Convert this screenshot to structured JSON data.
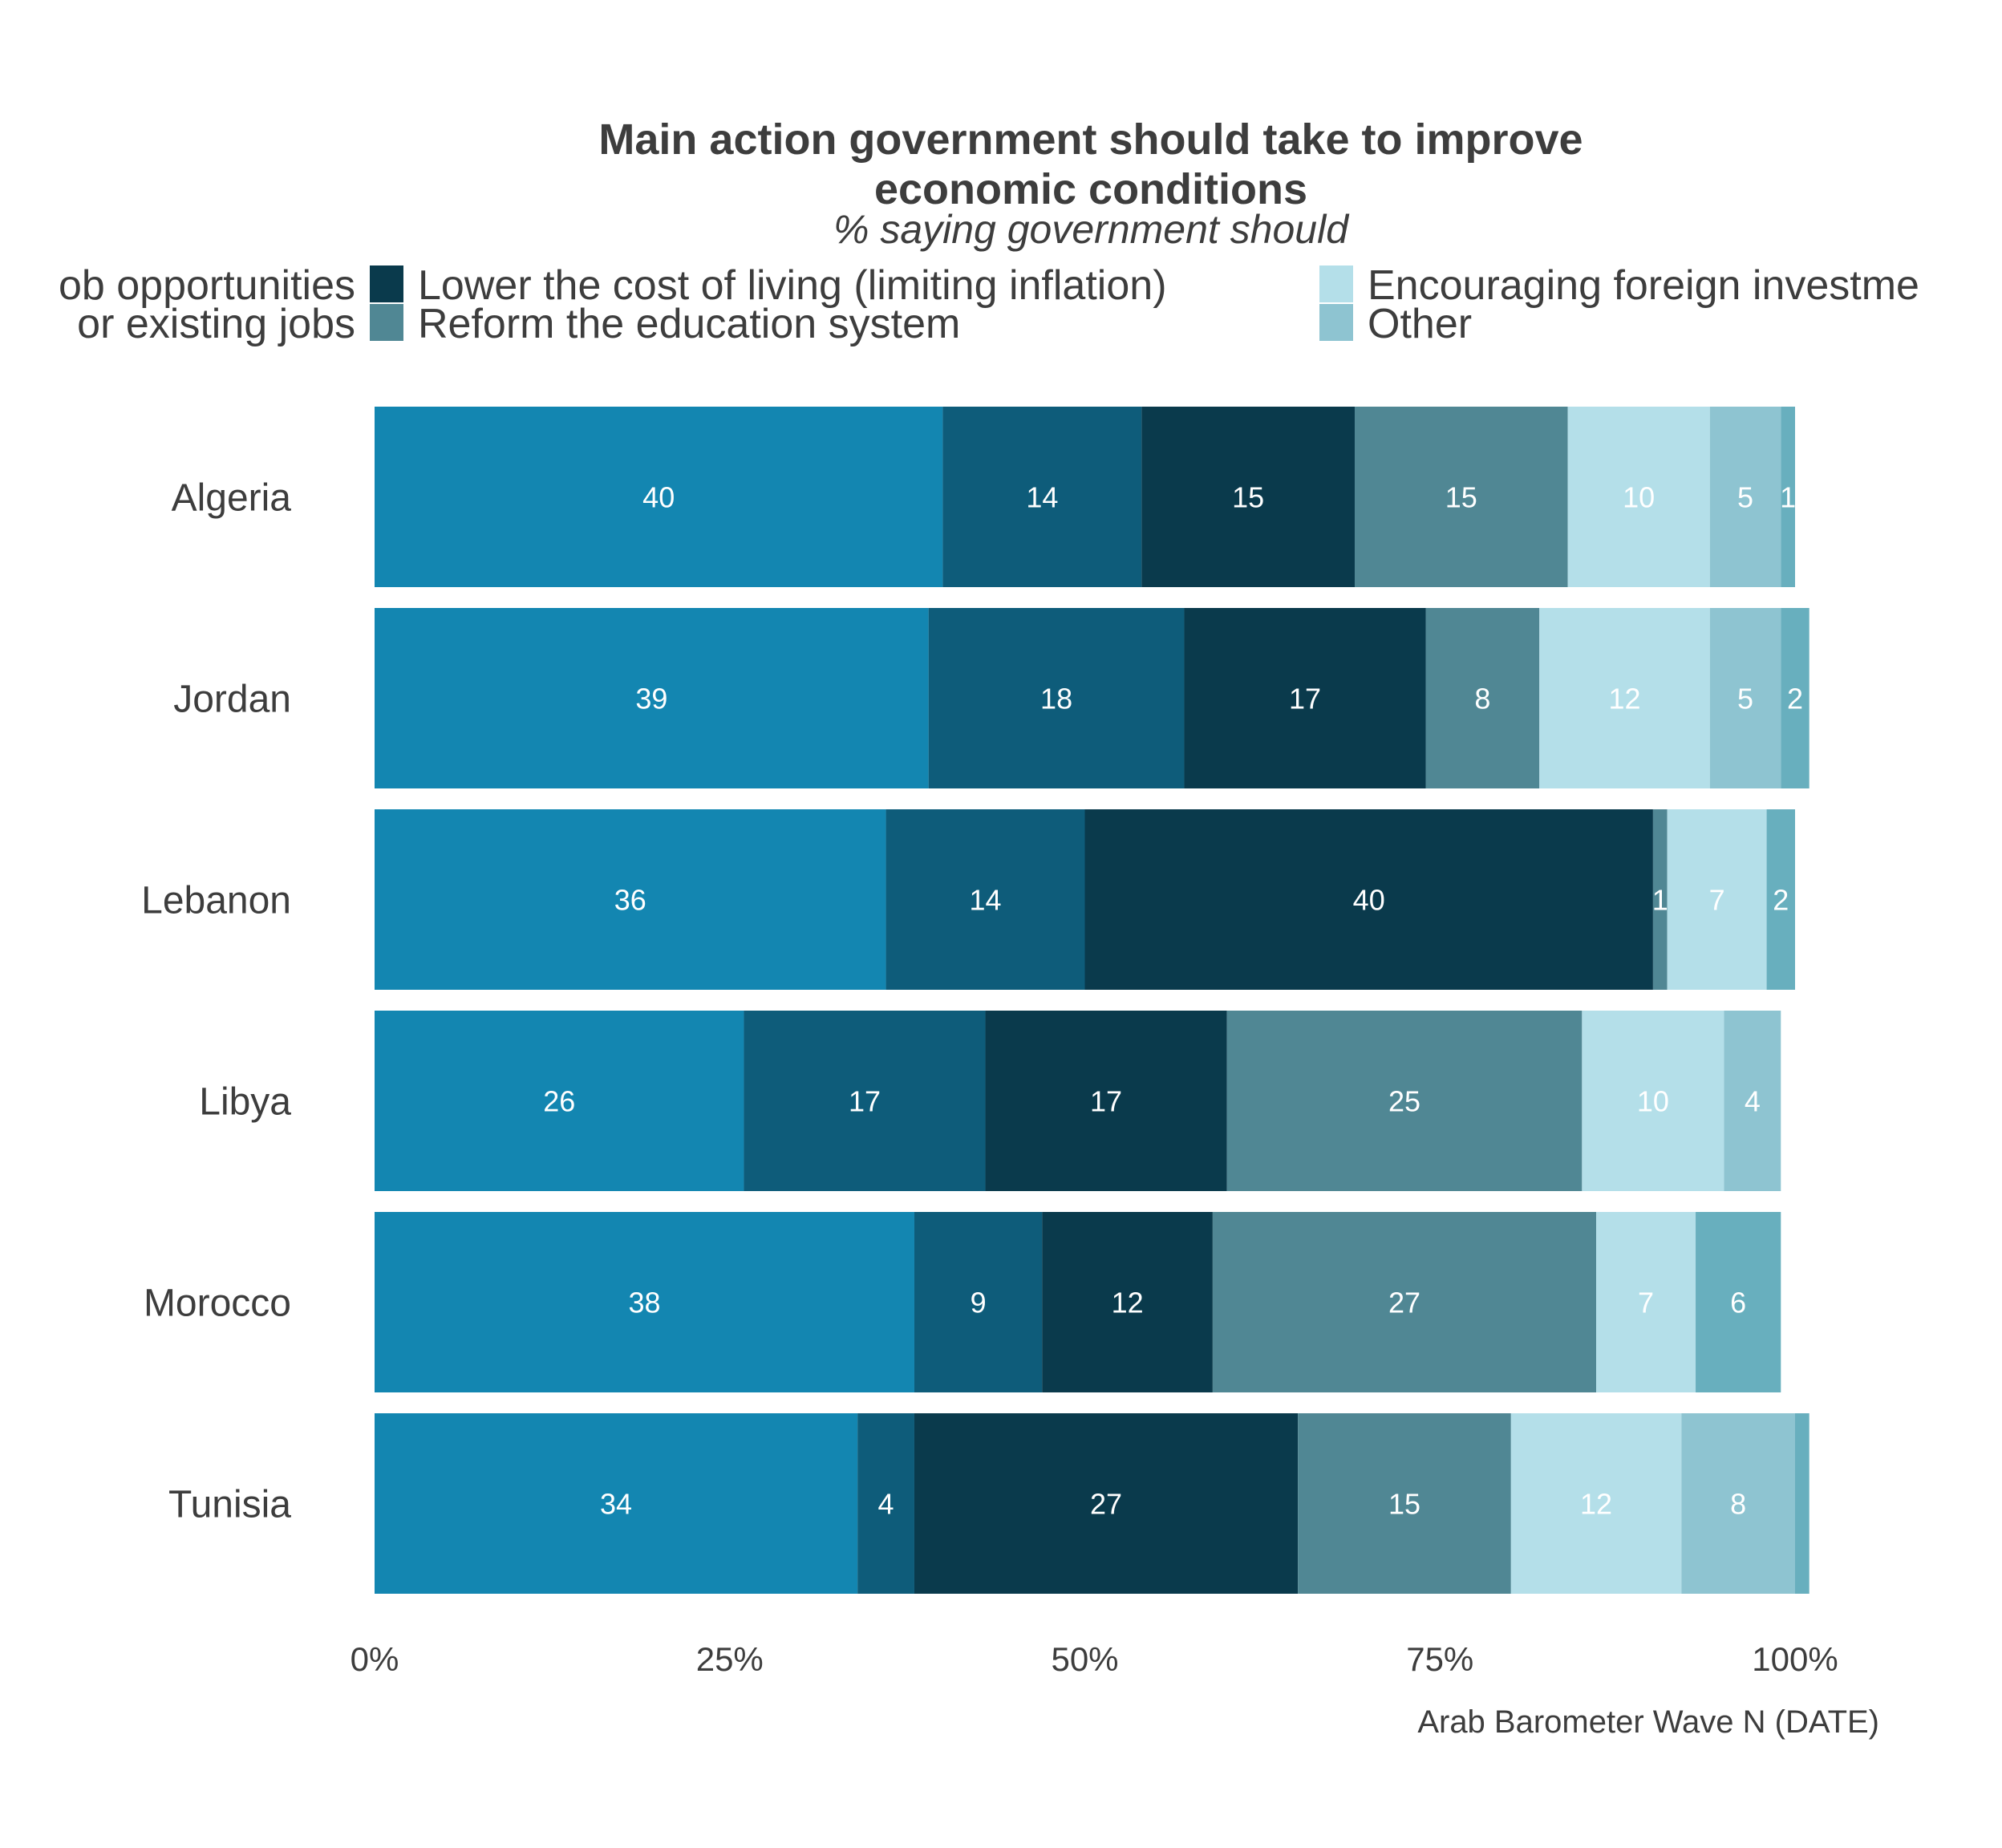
{
  "chart_data": {
    "type": "bar",
    "orientation": "horizontal",
    "stacked": true,
    "title_lines": [
      "Main action government should take to improve",
      "economic conditions"
    ],
    "subtitle": "% saying government should",
    "caption": "Arab Barometer Wave N (DATE)",
    "legend_lines": [
      [
        "ob opportunities",
        "Lower the cost of living (limiting inflation)",
        "Encouraging foreign investme"
      ],
      [
        "or existing jobs",
        "Reform the education system",
        "Other"
      ]
    ],
    "legend_placement": "top",
    "categories": [
      "Algeria",
      "Jordan",
      "Lebanon",
      "Libya",
      "Morocco",
      "Tunisia"
    ],
    "xlim": [
      0,
      100
    ],
    "x_ticks": [
      "0%",
      "25%",
      "50%",
      "75%",
      "100%"
    ],
    "grid": false,
    "series": [
      {
        "color": "#1386b1",
        "values": [
          40,
          39,
          36,
          26,
          38,
          34
        ],
        "value_labels": [
          "40",
          "39",
          "36",
          "26",
          "38",
          "34"
        ]
      },
      {
        "color": "#0e5c7a",
        "values": [
          14,
          18,
          14,
          17,
          9,
          4
        ],
        "value_labels": [
          "14",
          "18",
          "14",
          "17",
          "9",
          "4"
        ]
      },
      {
        "name": "Lower the cost of living (limiting inflation)",
        "color": "#0a3a4c",
        "values": [
          15,
          17,
          40,
          17,
          12,
          27
        ],
        "value_labels": [
          "15",
          "17",
          "40",
          "17",
          "12",
          "27"
        ]
      },
      {
        "name": "Reform the education system",
        "color": "#508794",
        "values": [
          15,
          8,
          1,
          25,
          27,
          15
        ],
        "value_labels": [
          "15",
          "8",
          "1",
          "25",
          "27",
          "15"
        ]
      },
      {
        "color": "#b4dfe9",
        "values": [
          10,
          12,
          7,
          10,
          7,
          12
        ],
        "value_labels": [
          "10",
          "12",
          "7",
          "10",
          "7",
          "12"
        ]
      },
      {
        "name": "Other",
        "color": "#8ec4d1",
        "values": [
          5,
          5,
          0,
          4,
          0,
          8
        ],
        "value_labels": [
          "5",
          "5",
          "",
          "4",
          "",
          "8"
        ]
      },
      {
        "color": "#68afbe",
        "values": [
          1,
          2,
          2,
          0,
          6,
          1
        ],
        "value_labels": [
          "1",
          "2",
          "2",
          "",
          "6",
          ""
        ]
      }
    ],
    "legend_colors": [
      [
        "#1386b1",
        "#0a3a4c",
        "#b4dfe9"
      ],
      [
        "#0e5c7a",
        "#508794",
        "#8ec4d1"
      ]
    ]
  }
}
